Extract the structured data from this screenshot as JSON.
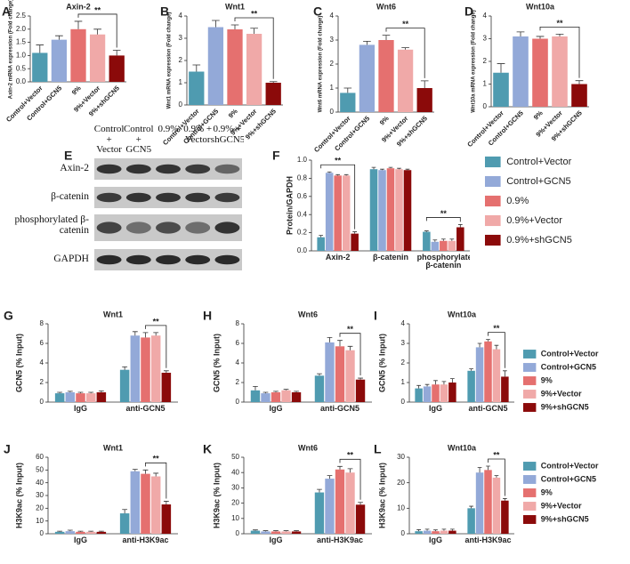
{
  "chart_data": [
    {
      "type": "bar",
      "panel": "A",
      "title": "Axin-2",
      "y_label": "Axin-2 mRNA expression (Fold change)",
      "categories": [
        "Control+Vector",
        "Control+GCN5",
        "9%",
        "9%+Vector",
        "9%+shGCN5"
      ],
      "values": [
        1.1,
        1.6,
        2.0,
        1.8,
        1.0
      ],
      "errors": [
        0.3,
        0.15,
        0.3,
        0.2,
        0.2
      ],
      "colors": [
        "#4f9bb0",
        "#93a9d8",
        "#e5706f",
        "#f0a9a8",
        "#8b0a0a"
      ],
      "ylim": [
        0,
        2.5
      ],
      "yticks": [
        {
          "value": 0,
          "label": "0.0"
        },
        {
          "value": 0.5,
          "label": "0.5"
        },
        {
          "value": 1,
          "label": "1.0"
        },
        {
          "value": 1.5,
          "label": "1.5"
        },
        {
          "value": 2,
          "label": "2.0"
        },
        {
          "value": 2.5,
          "label": "2.5"
        }
      ],
      "annotations": [
        "**"
      ]
    },
    {
      "type": "bar",
      "panel": "B",
      "title": "Wnt1",
      "y_label": "Wnt1 mRNA expression (Fold change)",
      "categories": [
        "Control+Vector",
        "Control+GCN5",
        "9%",
        "9%+Vector",
        "9%+shGCN5"
      ],
      "values": [
        1.5,
        3.5,
        3.4,
        3.2,
        1.0
      ],
      "errors": [
        0.3,
        0.3,
        0.2,
        0.25,
        0.05
      ],
      "colors": [
        "#4f9bb0",
        "#93a9d8",
        "#e5706f",
        "#f0a9a8",
        "#8b0a0a"
      ],
      "ylim": [
        0,
        4
      ],
      "yticks": [
        0,
        1,
        2,
        3,
        4
      ],
      "annotations": [
        "**"
      ]
    },
    {
      "type": "bar",
      "panel": "C",
      "title": "Wnt6",
      "y_label": "Wnt6 mRNA expression (Fold change)",
      "categories": [
        "Control+Vector",
        "Control+GCN5",
        "9%",
        "9%+Vector",
        "9%+shGCN5"
      ],
      "values": [
        0.8,
        2.8,
        3.0,
        2.6,
        1.0
      ],
      "errors": [
        0.2,
        0.15,
        0.2,
        0.08,
        0.3
      ],
      "colors": [
        "#4f9bb0",
        "#93a9d8",
        "#e5706f",
        "#f0a9a8",
        "#8b0a0a"
      ],
      "ylim": [
        0,
        4
      ],
      "yticks": [
        0,
        1,
        2,
        3,
        4
      ],
      "annotations": [
        "**"
      ]
    },
    {
      "type": "bar",
      "panel": "D",
      "title": "Wnt10a",
      "y_label": "Wnt10a mRNA expression (Fold change)",
      "categories": [
        "Control+Vector",
        "Control+GCN5",
        "9%",
        "9%+Vector",
        "9%+shGCN5"
      ],
      "values": [
        1.5,
        3.1,
        3.0,
        3.1,
        1.0
      ],
      "errors": [
        0.4,
        0.2,
        0.1,
        0.1,
        0.15
      ],
      "colors": [
        "#4f9bb0",
        "#93a9d8",
        "#e5706f",
        "#f0a9a8",
        "#8b0a0a"
      ],
      "ylim": [
        0,
        4
      ],
      "yticks": [
        0,
        1,
        2,
        3,
        4
      ],
      "annotations": [
        "**"
      ]
    },
    {
      "type": "grouped-bar",
      "panel": "F",
      "y_label": "Protein/GAPDH",
      "categories": [
        "Axin-2",
        "β-catenin",
        "phosphorylated β-catenin"
      ],
      "series": [
        {
          "name": "Control+Vector",
          "color": "#4f9bb0",
          "values": [
            0.15,
            0.9,
            0.21
          ],
          "errors": [
            0.02,
            0.02,
            0.01
          ]
        },
        {
          "name": "Control+GCN5",
          "color": "#93a9d8",
          "values": [
            0.86,
            0.89,
            0.1
          ],
          "errors": [
            0.01,
            0.01,
            0.02
          ]
        },
        {
          "name": "0.9%",
          "color": "#e5706f",
          "values": [
            0.83,
            0.91,
            0.11
          ],
          "errors": [
            0.01,
            0.01,
            0.02
          ]
        },
        {
          "name": "0.9%+Vector",
          "color": "#f0a9a8",
          "values": [
            0.83,
            0.9,
            0.11
          ],
          "errors": [
            0.01,
            0.01,
            0.02
          ]
        },
        {
          "name": "0.9%+shGCN5",
          "color": "#8b0a0a",
          "values": [
            0.19,
            0.89,
            0.26
          ],
          "errors": [
            0.02,
            0.01,
            0.03
          ]
        }
      ],
      "ylim": [
        0,
        1
      ],
      "yticks": [
        {
          "value": 0,
          "label": "0.0"
        },
        {
          "value": 0.2,
          "label": "0.2"
        },
        {
          "value": 0.4,
          "label": "0.4"
        },
        {
          "value": 0.6,
          "label": "0.6"
        },
        {
          "value": 0.8,
          "label": "0.8"
        },
        {
          "value": 1,
          "label": "1.0"
        }
      ],
      "annotations": [
        "**",
        "**"
      ]
    },
    {
      "type": "grouped-bar",
      "panel": "G",
      "title": "Wnt1",
      "y_label": "GCN5 (% Input)",
      "categories": [
        "IgG",
        "anti-GCN5"
      ],
      "series": [
        {
          "name": "Control+Vector",
          "color": "#4f9bb0",
          "values": [
            0.9,
            3.3
          ],
          "errors": [
            0.1,
            0.3
          ]
        },
        {
          "name": "Control+GCN5",
          "color": "#93a9d8",
          "values": [
            1.0,
            6.8
          ],
          "errors": [
            0.1,
            0.4
          ]
        },
        {
          "name": "9%",
          "color": "#e5706f",
          "values": [
            0.9,
            6.6
          ],
          "errors": [
            0.1,
            0.5
          ]
        },
        {
          "name": "9%+Vector",
          "color": "#f0a9a8",
          "values": [
            0.9,
            6.8
          ],
          "errors": [
            0.1,
            0.3
          ]
        },
        {
          "name": "9%+shGCN5",
          "color": "#8b0a0a",
          "values": [
            1.0,
            3.0
          ],
          "errors": [
            0.15,
            0.2
          ]
        }
      ],
      "ylim": [
        0,
        8
      ],
      "yticks": [
        0,
        2,
        4,
        6,
        8
      ],
      "annotations": [
        "**"
      ]
    },
    {
      "type": "grouped-bar",
      "panel": "H",
      "title": "Wnt6",
      "y_label": "GCN5 (% Input)",
      "categories": [
        "IgG",
        "anti-GCN5"
      ],
      "series": [
        {
          "color": "#4f9bb0",
          "values": [
            1.2,
            2.7
          ],
          "errors": [
            0.4,
            0.2
          ]
        },
        {
          "color": "#93a9d8",
          "values": [
            0.9,
            6.1
          ],
          "errors": [
            0.1,
            0.5
          ]
        },
        {
          "color": "#e5706f",
          "values": [
            1.0,
            5.7
          ],
          "errors": [
            0.1,
            0.6
          ]
        },
        {
          "color": "#f0a9a8",
          "values": [
            1.2,
            5.3
          ],
          "errors": [
            0.1,
            0.4
          ]
        },
        {
          "color": "#8b0a0a",
          "values": [
            1.0,
            2.3
          ],
          "errors": [
            0.1,
            0.15
          ]
        }
      ],
      "ylim": [
        0,
        8
      ],
      "yticks": [
        0,
        2,
        4,
        6,
        8
      ],
      "annotations": [
        "**"
      ]
    },
    {
      "type": "grouped-bar",
      "panel": "I",
      "title": "Wnt10a",
      "y_label": "GCN5 (% Input)",
      "categories": [
        "IgG",
        "anti-GCN5"
      ],
      "series": [
        {
          "color": "#4f9bb0",
          "values": [
            0.7,
            1.6
          ],
          "errors": [
            0.15,
            0.1
          ]
        },
        {
          "color": "#93a9d8",
          "values": [
            0.8,
            2.8
          ],
          "errors": [
            0.1,
            0.2
          ]
        },
        {
          "color": "#e5706f",
          "values": [
            0.9,
            3.1
          ],
          "errors": [
            0.2,
            0.1
          ]
        },
        {
          "color": "#f0a9a8",
          "values": [
            0.9,
            2.7
          ],
          "errors": [
            0.15,
            0.2
          ]
        },
        {
          "color": "#8b0a0a",
          "values": [
            1.0,
            1.3
          ],
          "errors": [
            0.2,
            0.3
          ]
        }
      ],
      "ylim": [
        0,
        4
      ],
      "yticks": [
        0,
        1,
        2,
        3,
        4
      ],
      "annotations": [
        "**"
      ]
    },
    {
      "type": "grouped-bar",
      "panel": "J",
      "title": "Wnt1",
      "y_label": "H3K9ac (% Input)",
      "categories": [
        "IgG",
        "anti-H3K9ac"
      ],
      "series": [
        {
          "name": "Control+Vector",
          "color": "#4f9bb0",
          "values": [
            1.5,
            16
          ],
          "errors": [
            0.5,
            3
          ]
        },
        {
          "name": "Control+GCN5",
          "color": "#93a9d8",
          "values": [
            2,
            49
          ],
          "errors": [
            0.8,
            1.5
          ]
        },
        {
          "name": "9%",
          "color": "#e5706f",
          "values": [
            1.5,
            47
          ],
          "errors": [
            0.5,
            3
          ]
        },
        {
          "name": "9%+Vector",
          "color": "#f0a9a8",
          "values": [
            1.5,
            45
          ],
          "errors": [
            0.5,
            2.5
          ]
        },
        {
          "name": "9%+shGCN5",
          "color": "#8b0a0a",
          "values": [
            1.5,
            23
          ],
          "errors": [
            0.5,
            2.5
          ]
        }
      ],
      "ylim": [
        0,
        60
      ],
      "yticks": [
        0,
        10,
        20,
        30,
        40,
        50,
        60
      ],
      "annotations": [
        "**"
      ]
    },
    {
      "type": "grouped-bar",
      "panel": "K",
      "title": "Wnt6",
      "y_label": "H3K9ac (% Input)",
      "categories": [
        "IgG",
        "anti-H3K9ac"
      ],
      "series": [
        {
          "color": "#4f9bb0",
          "values": [
            2,
            27
          ],
          "errors": [
            0.5,
            2
          ]
        },
        {
          "color": "#93a9d8",
          "values": [
            1.5,
            36
          ],
          "errors": [
            0.5,
            2
          ]
        },
        {
          "color": "#e5706f",
          "values": [
            1.5,
            42
          ],
          "errors": [
            0.5,
            2
          ]
        },
        {
          "color": "#f0a9a8",
          "values": [
            1.5,
            40
          ],
          "errors": [
            0.5,
            2.5
          ]
        },
        {
          "color": "#8b0a0a",
          "values": [
            1.5,
            19
          ],
          "errors": [
            0.5,
            1.5
          ]
        }
      ],
      "ylim": [
        0,
        50
      ],
      "yticks": [
        0,
        10,
        20,
        30,
        40,
        50
      ],
      "annotations": [
        "**"
      ]
    },
    {
      "type": "grouped-bar",
      "panel": "L",
      "title": "Wnt10a",
      "y_label": "H3K9ac (% Input)",
      "categories": [
        "IgG",
        "anti-H3K9ac"
      ],
      "series": [
        {
          "color": "#4f9bb0",
          "values": [
            1,
            10
          ],
          "errors": [
            0.6,
            0.8
          ]
        },
        {
          "color": "#93a9d8",
          "values": [
            1.2,
            24
          ],
          "errors": [
            0.6,
            2
          ]
        },
        {
          "color": "#e5706f",
          "values": [
            1,
            25
          ],
          "errors": [
            0.5,
            1.5
          ]
        },
        {
          "color": "#f0a9a8",
          "values": [
            1.2,
            22
          ],
          "errors": [
            0.6,
            0.8
          ]
        },
        {
          "color": "#8b0a0a",
          "values": [
            1.2,
            13
          ],
          "errors": [
            0.6,
            0.8
          ]
        }
      ],
      "ylim": [
        0,
        30
      ],
      "yticks": [
        0,
        10,
        20,
        30
      ],
      "annotations": [
        "**"
      ]
    }
  ],
  "blot": {
    "panel": "E",
    "lanes": [
      "Control + Vector",
      "Control + GCN5",
      "0.9%",
      "0.9% + Vector",
      "0.9% + shGCN5"
    ],
    "rows": [
      "Axin-2",
      "β-catenin",
      "phosphorylated β-catenin",
      "GAPDH"
    ]
  }
}
